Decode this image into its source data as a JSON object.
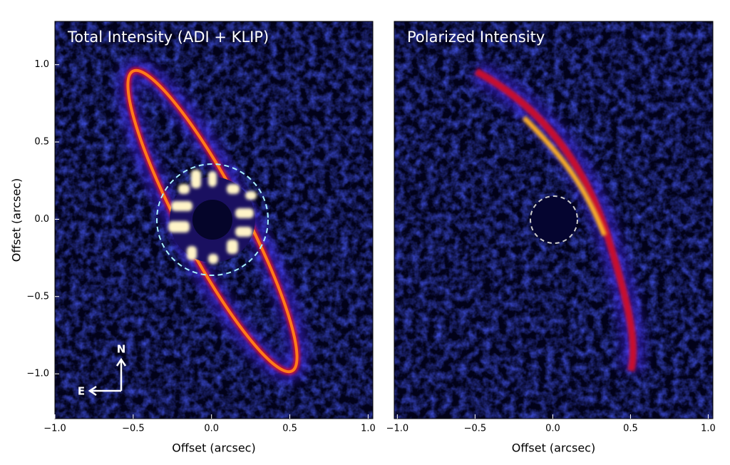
{
  "chart_data": [
    {
      "type": "image",
      "title": "Total Intensity (ADI + KLIP)",
      "x_label": "Offset (arcsec)",
      "y_label": "Offset (arcsec)",
      "xlim": [
        -1.0,
        1.03
      ],
      "ylim": [
        -1.29,
        1.28
      ],
      "xticks": [
        {
          "value": -1.0,
          "label": "−1.0"
        },
        {
          "value": -0.5,
          "label": "−0.5"
        },
        {
          "value": 0.0,
          "label": "0.0"
        },
        0.5,
        {
          "value": 1.0,
          "label": "1.0"
        }
      ],
      "yticks": [
        {
          "value": -1.0,
          "label": "−1.0"
        },
        {
          "value": -0.5,
          "label": "−0.5"
        },
        {
          "value": 0.0,
          "label": "0.0"
        },
        0.5,
        {
          "value": 1.0,
          "label": "1.0"
        }
      ],
      "annotations": [
        "N",
        "E"
      ]
    },
    {
      "type": "image",
      "title": "Polarized Intensity",
      "x_label": "Offset (arcsec)",
      "xlim": [
        -1.02,
        1.03
      ],
      "ylim": [
        -1.29,
        1.28
      ],
      "xticks": [
        {
          "value": -1.0,
          "label": "−1.0"
        },
        {
          "value": -0.5,
          "label": "−0.5"
        },
        {
          "value": 0.0,
          "label": "0.0"
        },
        0.5,
        {
          "value": 1.0,
          "label": "1.0"
        }
      ]
    }
  ]
}
